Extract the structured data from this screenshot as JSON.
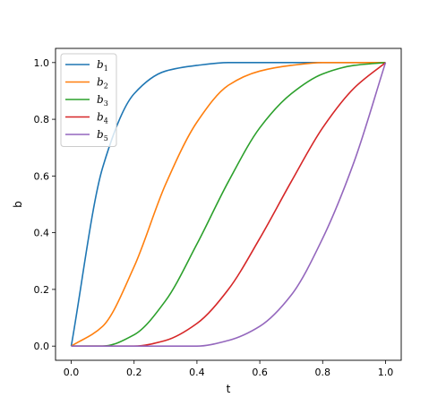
{
  "chart_data": {
    "type": "line",
    "title": "",
    "xlabel": "t",
    "ylabel": "b",
    "xlim": [
      -0.05,
      1.05
    ],
    "ylim": [
      -0.05,
      1.05
    ],
    "x_ticks": [
      "0.0",
      "0.2",
      "0.4",
      "0.6",
      "0.8",
      "1.0"
    ],
    "y_ticks": [
      "0.0",
      "0.2",
      "0.4",
      "0.6",
      "0.8",
      "1.0"
    ],
    "grid": false,
    "legend_position": "upper-left",
    "x": [
      0.0,
      0.1,
      0.2,
      0.3,
      0.4,
      0.5,
      0.6,
      0.7,
      0.8,
      0.9,
      1.0
    ],
    "series": [
      {
        "name": "b",
        "sub": "1",
        "color": "#1f77b4",
        "values": [
          0.0,
          0.63,
          0.89,
          0.97,
          0.99,
          1.0,
          1.0,
          1.0,
          1.0,
          1.0,
          1.0
        ]
      },
      {
        "name": "b",
        "sub": "2",
        "color": "#ff7f0e",
        "values": [
          0.0,
          0.07,
          0.28,
          0.57,
          0.79,
          0.92,
          0.97,
          0.99,
          1.0,
          1.0,
          1.0
        ]
      },
      {
        "name": "b",
        "sub": "3",
        "color": "#2ca02c",
        "values": [
          0.0,
          0.0,
          0.04,
          0.16,
          0.36,
          0.58,
          0.77,
          0.89,
          0.96,
          0.99,
          1.0
        ]
      },
      {
        "name": "b",
        "sub": "4",
        "color": "#d62728",
        "values": [
          0.0,
          0.0,
          0.0,
          0.02,
          0.08,
          0.2,
          0.38,
          0.58,
          0.77,
          0.91,
          1.0
        ]
      },
      {
        "name": "b",
        "sub": "5",
        "color": "#9467bd",
        "values": [
          0.0,
          0.0,
          0.0,
          0.0,
          0.0,
          0.02,
          0.07,
          0.18,
          0.38,
          0.65,
          1.0
        ]
      }
    ]
  }
}
